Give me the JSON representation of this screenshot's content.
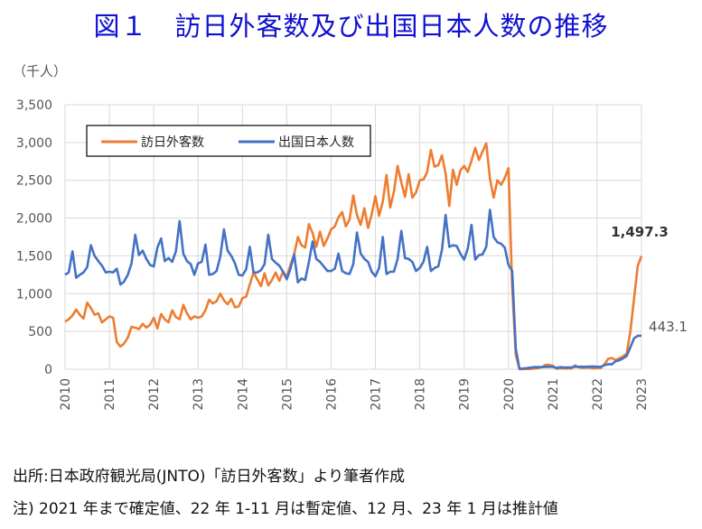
{
  "title": "図１　訪日外客数及び出国日本人数の推移",
  "unit_label": "（千人）",
  "notes": [
    "出所:日本政府観光局(JNTO)「訪日外客数」より筆者作成",
    "注) 2021 年まで確定値、22 年 1-11 月は暫定値、12 月、23 年 1 月は推計値"
  ],
  "chart_data": {
    "type": "line",
    "title": "図１　訪日外客数及び出国日本人数の推移",
    "ylabel": "（千人）",
    "xlabel": "",
    "ylim": [
      0,
      3500
    ],
    "yticks": [
      "0",
      "500",
      "1,000",
      "1,500",
      "2,000",
      "2,500",
      "3,000",
      "3,500"
    ],
    "ytick_values": [
      0,
      500,
      1000,
      1500,
      2000,
      2500,
      3000,
      3500
    ],
    "xticks": [
      "2010",
      "2011",
      "2012",
      "2013",
      "2014",
      "2015",
      "2016",
      "2017",
      "2018",
      "2019",
      "2020",
      "2021",
      "2022",
      "2023"
    ],
    "x_start": "2010-01",
    "x_end": "2023-01",
    "grid": true,
    "legend_position": "top-left",
    "series": [
      {
        "name": "訪日外客数",
        "color": "#ed7d31",
        "end_label": "1,497.3",
        "values": [
          630,
          660,
          710,
          790,
          720,
          670,
          880,
          810,
          720,
          740,
          620,
          660,
          700,
          680,
          360,
          300,
          340,
          420,
          560,
          550,
          530,
          600,
          550,
          590,
          680,
          540,
          730,
          660,
          620,
          780,
          690,
          660,
          850,
          740,
          660,
          700,
          680,
          700,
          780,
          920,
          870,
          900,
          1000,
          910,
          860,
          930,
          820,
          830,
          940,
          960,
          1120,
          1280,
          1190,
          1100,
          1270,
          1110,
          1180,
          1280,
          1170,
          1290,
          1220,
          1380,
          1520,
          1750,
          1640,
          1610,
          1920,
          1800,
          1620,
          1820,
          1630,
          1730,
          1850,
          1890,
          2010,
          2080,
          1890,
          1980,
          2300,
          2040,
          1910,
          2130,
          1870,
          2050,
          2290,
          2030,
          2220,
          2570,
          2140,
          2350,
          2690,
          2470,
          2280,
          2580,
          2270,
          2340,
          2500,
          2510,
          2610,
          2900,
          2680,
          2700,
          2830,
          2590,
          2160,
          2640,
          2440,
          2630,
          2690,
          2610,
          2760,
          2930,
          2770,
          2880,
          2990,
          2520,
          2270,
          2500,
          2440,
          2530,
          2660,
          1090,
          190,
          2,
          2,
          3,
          4,
          9,
          14,
          28,
          56,
          59,
          46,
          7,
          12,
          11,
          10,
          10,
          51,
          26,
          18,
          22,
          21,
          12,
          17,
          17,
          66,
          139,
          148,
          121,
          145,
          170,
          207,
          499,
          935,
          1370,
          1497
        ]
      },
      {
        "name": "出国日本人数",
        "color": "#4472c4",
        "end_label": "443.1",
        "values": [
          1250,
          1280,
          1560,
          1210,
          1250,
          1280,
          1350,
          1640,
          1500,
          1430,
          1370,
          1280,
          1290,
          1280,
          1330,
          1120,
          1160,
          1250,
          1400,
          1780,
          1510,
          1570,
          1460,
          1380,
          1360,
          1610,
          1730,
          1430,
          1470,
          1420,
          1560,
          1960,
          1530,
          1430,
          1390,
          1250,
          1400,
          1420,
          1650,
          1250,
          1260,
          1300,
          1490,
          1850,
          1570,
          1500,
          1400,
          1250,
          1240,
          1320,
          1620,
          1280,
          1280,
          1310,
          1390,
          1780,
          1460,
          1410,
          1370,
          1290,
          1190,
          1330,
          1520,
          1150,
          1200,
          1180,
          1420,
          1690,
          1460,
          1420,
          1360,
          1300,
          1300,
          1330,
          1530,
          1300,
          1270,
          1260,
          1390,
          1810,
          1530,
          1460,
          1420,
          1290,
          1230,
          1340,
          1750,
          1260,
          1290,
          1290,
          1460,
          1830,
          1470,
          1460,
          1420,
          1300,
          1340,
          1420,
          1620,
          1300,
          1340,
          1360,
          1580,
          2040,
          1620,
          1640,
          1630,
          1530,
          1450,
          1600,
          1910,
          1450,
          1510,
          1520,
          1620,
          2110,
          1750,
          1680,
          1660,
          1610,
          1380,
          1300,
          270,
          4,
          11,
          14,
          22,
          28,
          29,
          27,
          31,
          32,
          33,
          16,
          27,
          21,
          23,
          23,
          33,
          32,
          33,
          32,
          35,
          37,
          32,
          33,
          53,
          67,
          65,
          106,
          118,
          145,
          174,
          288,
          409,
          443,
          443
        ]
      }
    ]
  }
}
